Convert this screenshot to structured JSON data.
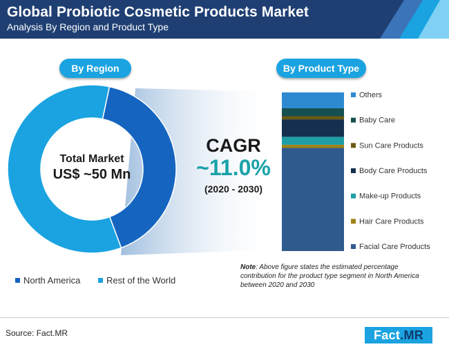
{
  "header": {
    "title": "Global Probiotic Cosmetic Products Market",
    "subtitle": "Analysis By Region and Product Type"
  },
  "region": {
    "pill_label": "By Region",
    "center_label": "Total Market",
    "center_value": "US$ ~50 Mn",
    "legend": [
      "North America",
      "Rest of the World"
    ]
  },
  "cagr": {
    "label": "CAGR",
    "value": "~11.0%",
    "period": "(2020 - 2030)"
  },
  "product": {
    "pill_label": "By Product Type",
    "note_label": "Note",
    "note_text": ": Above figure states the estimated percentage contribution for the product type segment in North America between 2020 and 2030"
  },
  "footer": {
    "source": "Source: Fact.MR",
    "brand_main": "Fact",
    "brand_accent": ".MR"
  },
  "colors": {
    "header_bg": "#1f3f73",
    "accent": "#1aa3e0",
    "north_america": "#1565c0",
    "rest_of_world": "#1aa3e0",
    "cagr_value": "#19a2a8"
  },
  "chart_data": [
    {
      "type": "pie",
      "variant": "donut",
      "categories": [
        "North America",
        "Rest of the World"
      ],
      "values": [
        41,
        59
      ],
      "colors": [
        "#1565c0",
        "#1aa3e0"
      ]
    },
    {
      "type": "bar",
      "variant": "100% stacked column",
      "categories": [
        "Facial Care Products",
        "Hair Care Products",
        "Make-up Products",
        "Body Care Products",
        "Sun Care Products",
        "Baby Care",
        "Others"
      ],
      "values": [
        65,
        2,
        5,
        11,
        2,
        5,
        10
      ],
      "colors": [
        "#2f5a8e",
        "#a08418",
        "#1e9fa5",
        "#15304f",
        "#6b5a12",
        "#164f50",
        "#2e8ad0"
      ],
      "legend_position": "right"
    }
  ]
}
